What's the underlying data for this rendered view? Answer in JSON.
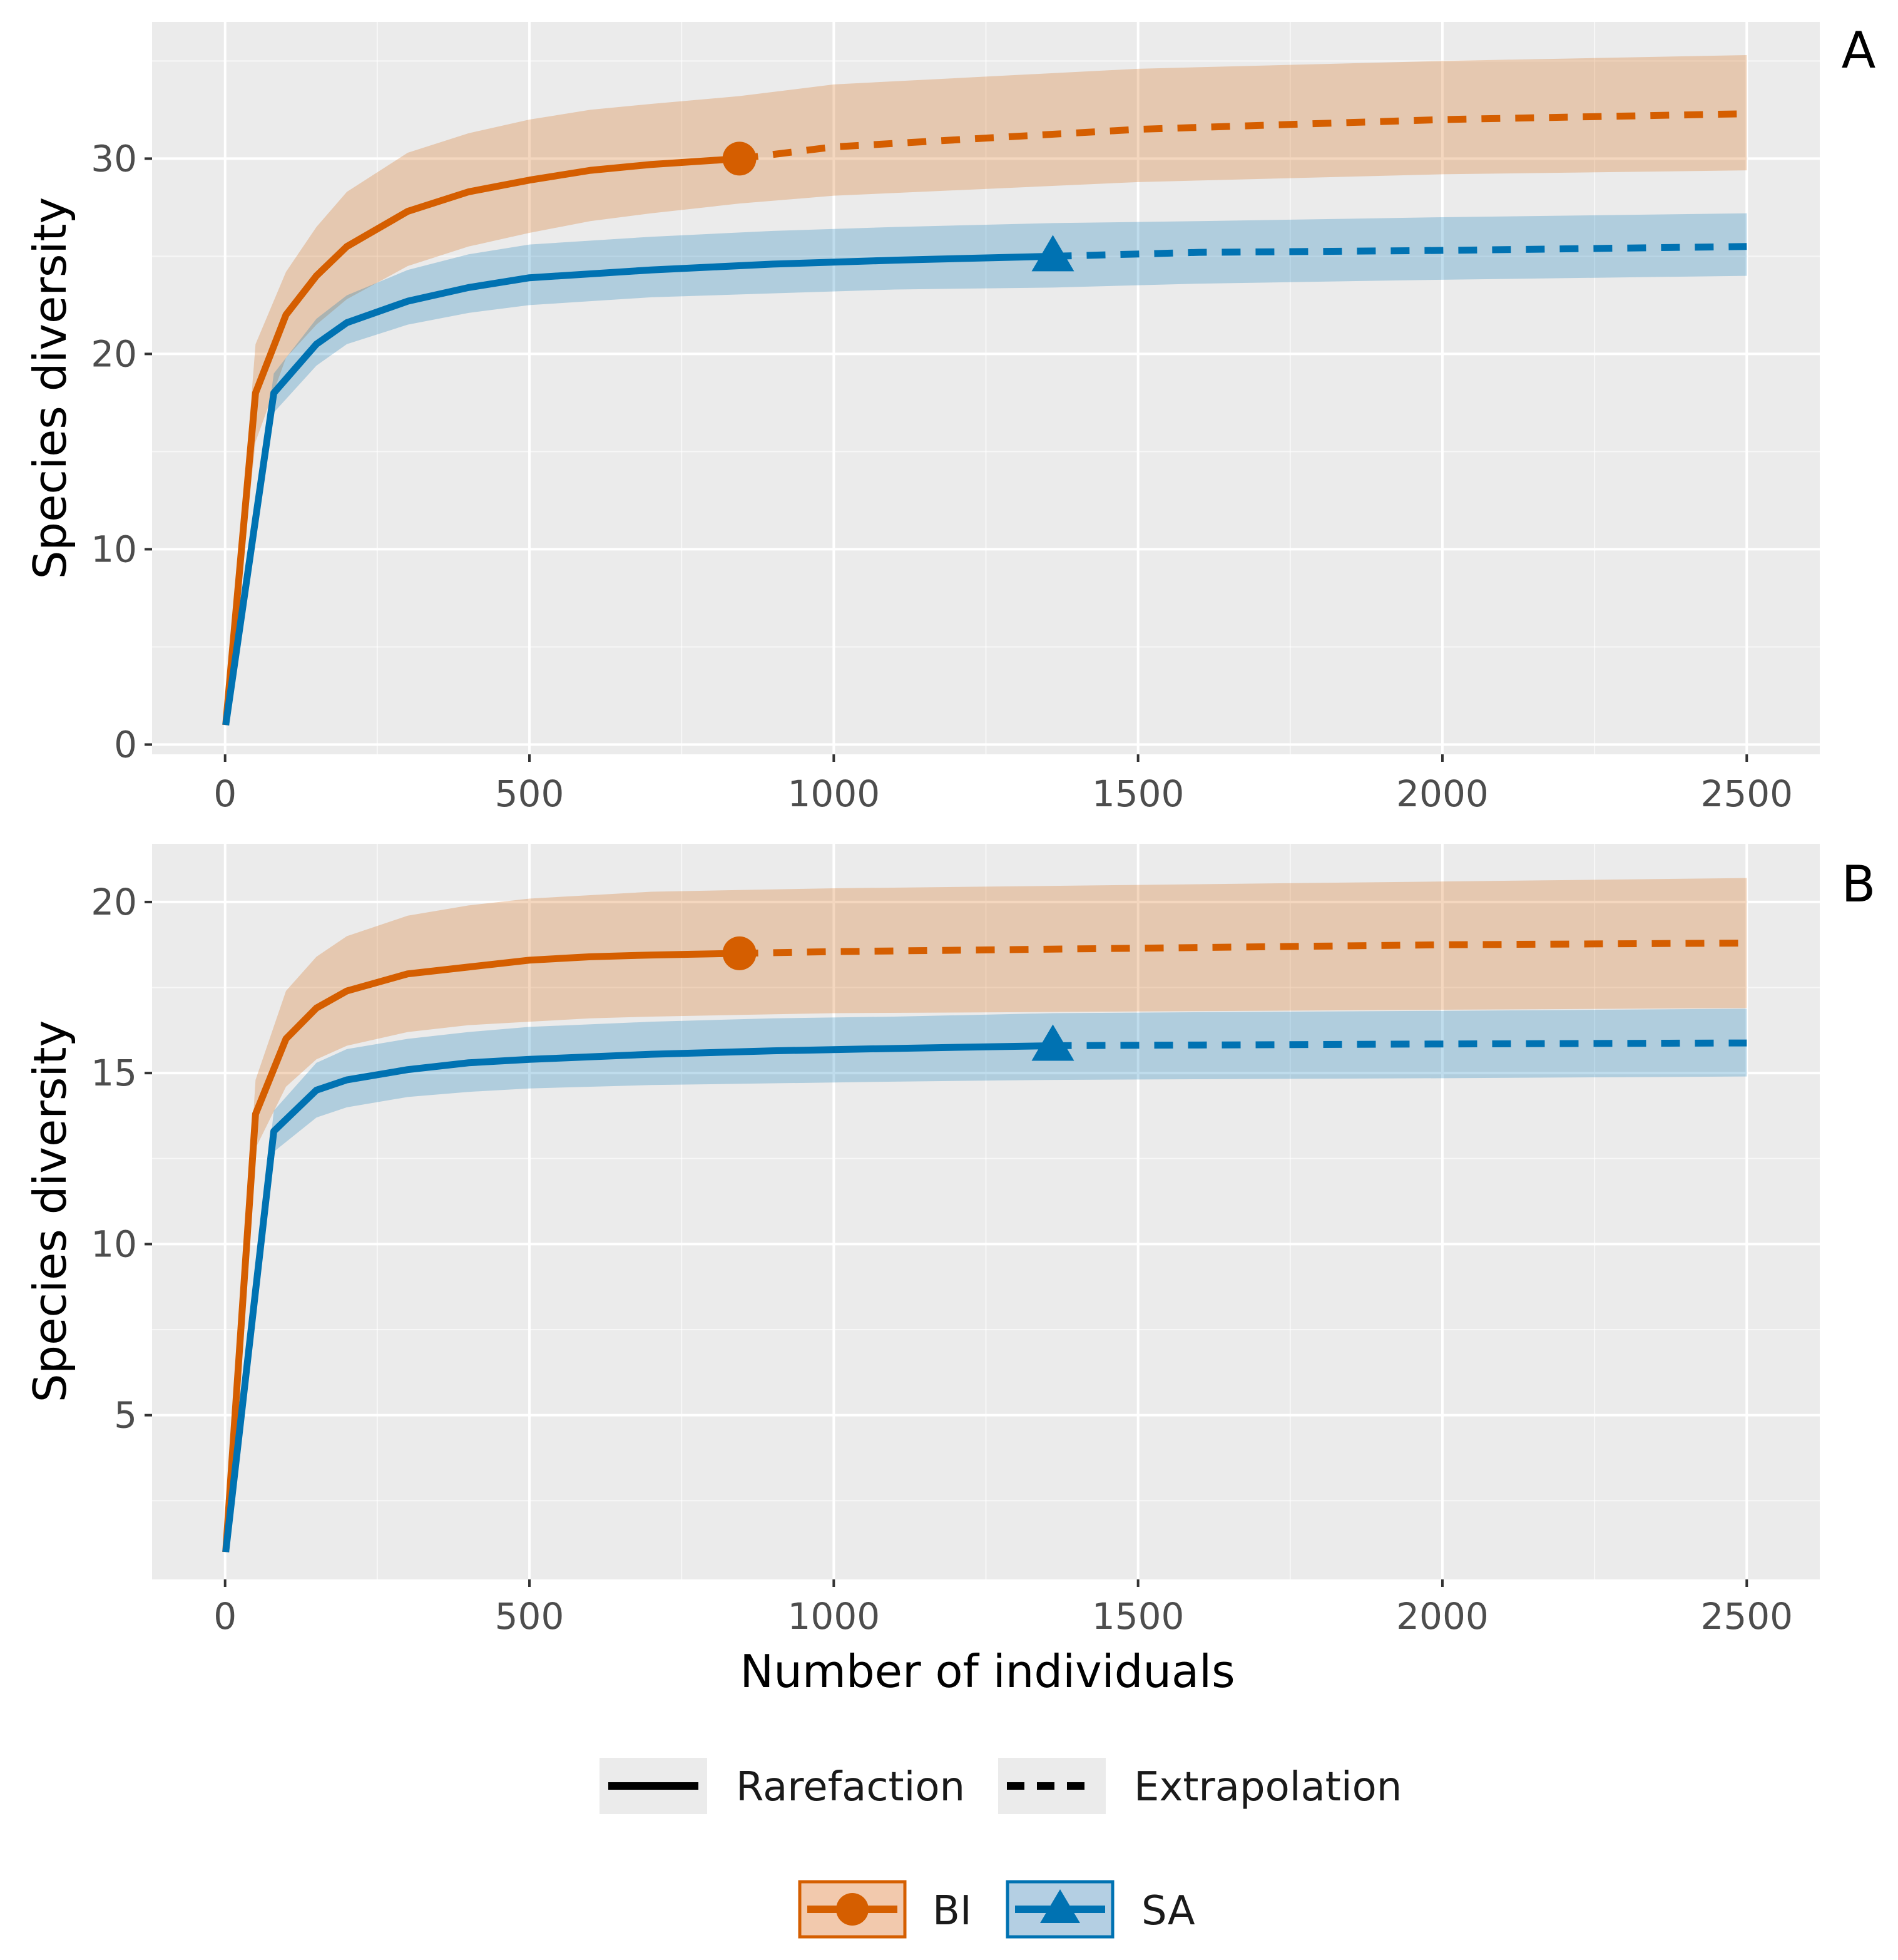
{
  "figure": {
    "xlabel": "Number of individuals",
    "colors": {
      "BI": "#d55e00",
      "SA": "#0072b2",
      "panel_bg": "#ebebeb",
      "grid": "#ffffff"
    }
  },
  "legend": {
    "linetype": [
      {
        "label": "Rarefaction",
        "style": "solid"
      },
      {
        "label": "Extrapolation",
        "style": "dashed"
      }
    ],
    "groups": [
      {
        "label": "BI",
        "marker": "circle",
        "color": "#d55e00"
      },
      {
        "label": "SA",
        "marker": "triangle",
        "color": "#0072b2"
      }
    ]
  },
  "chart_data": [
    {
      "type": "line",
      "panel": "A",
      "xlabel": "",
      "ylabel": "Species diversity",
      "xlim": [
        -120,
        2620
      ],
      "ylim": [
        -0.5,
        37
      ],
      "xticks": [
        0,
        500,
        1000,
        1500,
        2000,
        2500
      ],
      "yticks": [
        0,
        10,
        20,
        30
      ],
      "grid": true,
      "series": [
        {
          "name": "BI",
          "observed": {
            "x": 845,
            "y": 30
          },
          "rarefaction": {
            "x": [
              1,
              50,
              100,
              150,
              200,
              300,
              400,
              500,
              600,
              700,
              845
            ],
            "y": [
              1,
              18,
              22,
              24,
              25.5,
              27.3,
              28.3,
              28.9,
              29.4,
              29.7,
              30
            ],
            "lower": [
              1,
              15.5,
              19.8,
              21.5,
              22.8,
              24.5,
              25.5,
              26.2,
              26.8,
              27.2,
              27.7
            ],
            "upper": [
              1,
              20.5,
              24.2,
              26.5,
              28.3,
              30.3,
              31.3,
              32,
              32.5,
              32.8,
              33.2
            ]
          },
          "extrapolation": {
            "x": [
              845,
              1000,
              1500,
              2000,
              2500
            ],
            "y": [
              30,
              30.6,
              31.5,
              32,
              32.3
            ],
            "lower": [
              27.7,
              28.1,
              28.8,
              29.2,
              29.4
            ],
            "upper": [
              33.2,
              33.8,
              34.6,
              35,
              35.3
            ]
          }
        },
        {
          "name": "SA",
          "observed": {
            "x": 1360,
            "y": 25
          },
          "rarefaction": {
            "x": [
              1,
              80,
              150,
              200,
              300,
              400,
              500,
              700,
              900,
              1100,
              1360
            ],
            "y": [
              1,
              18,
              20.5,
              21.6,
              22.7,
              23.4,
              23.9,
              24.3,
              24.6,
              24.8,
              25
            ],
            "lower": [
              1,
              17,
              19.4,
              20.5,
              21.5,
              22.1,
              22.5,
              22.9,
              23.1,
              23.3,
              23.4
            ],
            "upper": [
              1,
              19,
              21.8,
              23,
              24.3,
              25.1,
              25.6,
              26,
              26.3,
              26.5,
              26.7
            ]
          },
          "extrapolation": {
            "x": [
              1360,
              1600,
              2000,
              2500
            ],
            "y": [
              25,
              25.2,
              25.3,
              25.5
            ],
            "lower": [
              23.4,
              23.6,
              23.8,
              24
            ],
            "upper": [
              26.7,
              26.8,
              27,
              27.2
            ]
          }
        }
      ]
    },
    {
      "type": "line",
      "panel": "B",
      "xlabel": "Number of individuals",
      "ylabel": "Species diversity",
      "xlim": [
        -120,
        2620
      ],
      "ylim": [
        0.2,
        21.7
      ],
      "xticks": [
        0,
        500,
        1000,
        1500,
        2000,
        2500
      ],
      "yticks": [
        5,
        10,
        15,
        20
      ],
      "grid": true,
      "series": [
        {
          "name": "BI",
          "observed": {
            "x": 845,
            "y": 18.5
          },
          "rarefaction": {
            "x": [
              1,
              50,
              100,
              150,
              200,
              300,
              400,
              500,
              600,
              700,
              845
            ],
            "y": [
              1,
              13.8,
              16,
              16.9,
              17.4,
              17.9,
              18.1,
              18.3,
              18.4,
              18.45,
              18.5
            ],
            "lower": [
              1,
              12.8,
              14.6,
              15.4,
              15.8,
              16.2,
              16.4,
              16.5,
              16.6,
              16.65,
              16.7
            ],
            "upper": [
              1,
              14.8,
              17.4,
              18.4,
              19,
              19.6,
              19.9,
              20.1,
              20.2,
              20.3,
              20.35
            ]
          },
          "extrapolation": {
            "x": [
              845,
              1000,
              1500,
              2000,
              2500
            ],
            "y": [
              18.5,
              18.55,
              18.65,
              18.75,
              18.8
            ],
            "lower": [
              16.7,
              16.75,
              16.8,
              16.85,
              16.9
            ],
            "upper": [
              20.35,
              20.4,
              20.5,
              20.6,
              20.7
            ]
          }
        },
        {
          "name": "SA",
          "observed": {
            "x": 1360,
            "y": 15.8
          },
          "rarefaction": {
            "x": [
              1,
              80,
              150,
              200,
              300,
              400,
              500,
              700,
              900,
              1100,
              1360
            ],
            "y": [
              1,
              13.3,
              14.5,
              14.8,
              15.1,
              15.3,
              15.4,
              15.55,
              15.65,
              15.72,
              15.8
            ],
            "lower": [
              1,
              12.7,
              13.7,
              14,
              14.3,
              14.45,
              14.55,
              14.65,
              14.7,
              14.75,
              14.8
            ],
            "upper": [
              1,
              13.9,
              15.3,
              15.7,
              16,
              16.2,
              16.35,
              16.5,
              16.6,
              16.65,
              16.75
            ]
          },
          "extrapolation": {
            "x": [
              1360,
              1600,
              2000,
              2500
            ],
            "y": [
              15.8,
              15.82,
              15.85,
              15.88
            ],
            "lower": [
              14.8,
              14.82,
              14.85,
              14.9
            ],
            "upper": [
              16.75,
              16.78,
              16.82,
              16.88
            ]
          }
        }
      ]
    }
  ]
}
